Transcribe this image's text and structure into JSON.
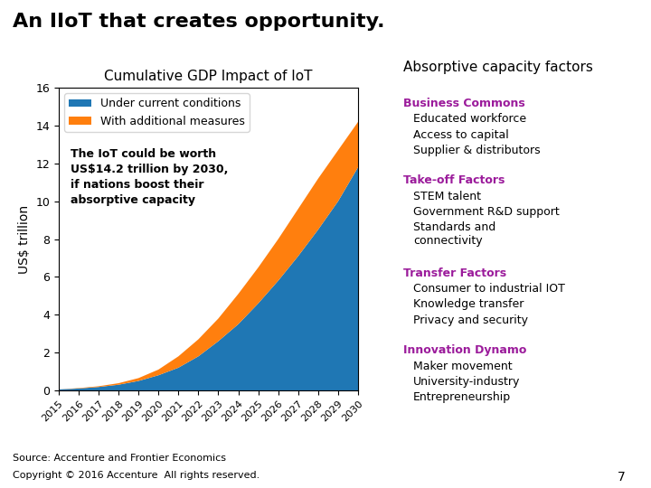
{
  "title": "An IIoT that creates opportunity.",
  "chart_data": {
    "type": "area",
    "title": "Cumulative GDP Impact of IoT",
    "y_label": "US$ trillion",
    "x": [
      2015,
      2016,
      2017,
      2018,
      2019,
      2020,
      2021,
      2022,
      2023,
      2024,
      2025,
      2026,
      2027,
      2028,
      2029,
      2030
    ],
    "series": [
      {
        "name": "Under current conditions",
        "values": [
          0.05,
          0.1,
          0.18,
          0.3,
          0.5,
          0.8,
          1.2,
          1.8,
          2.6,
          3.5,
          4.6,
          5.8,
          7.1,
          8.5,
          10.0,
          11.8
        ]
      },
      {
        "name": "With additional measures",
        "values": [
          0.0,
          0.02,
          0.04,
          0.08,
          0.15,
          0.3,
          0.6,
          0.9,
          1.2,
          1.6,
          1.9,
          2.2,
          2.5,
          2.7,
          2.7,
          2.4
        ]
      }
    ],
    "stacked": true,
    "xlim": [
      2015,
      2030
    ],
    "xticks": [
      2015,
      2016,
      2017,
      2018,
      2019,
      2020,
      2021,
      2022,
      2023,
      2024,
      2025,
      2026,
      2027,
      2028,
      2029,
      2030
    ],
    "ylim": [
      0,
      16
    ],
    "yticks": [
      0,
      2,
      4,
      6,
      8,
      10,
      12,
      14,
      16
    ],
    "legend": "upper left",
    "annotation": "The IoT could be worth\nUS$14.2 trillion by 2030,\nif nations boost their\nabsorptive capacity"
  },
  "panel": {
    "title": "Absorptive capacity factors",
    "factors": [
      {
        "title": "Business Commons",
        "color": "#9B1B9B",
        "items": [
          "Educated workforce",
          "Access to capital",
          "Supplier & distributors"
        ]
      },
      {
        "title": "Take-off Factors",
        "color": "#9B1B9B",
        "items": [
          "STEM talent",
          "Government R&D support",
          "Standards and\nconnectivity"
        ]
      },
      {
        "title": "Transfer Factors",
        "color": "#9B1B9B",
        "items": [
          "Consumer to industrial IOT",
          "Knowledge transfer",
          "Privacy and security"
        ]
      },
      {
        "title": "Innovation Dynamo",
        "color": "#9B1B9B",
        "items": [
          "Maker movement",
          "University-industry",
          "Entrepreneurship"
        ]
      }
    ]
  },
  "source": "Source: Accenture and Frontier Economics",
  "copyright": "Copyright © 2016 Accenture  All rights reserved.",
  "page_number": 7
}
